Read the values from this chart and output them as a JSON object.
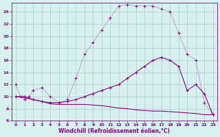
{
  "xlabel": "Windchill (Refroidissement éolien,°C)",
  "bg_color": "#d8f0ee",
  "grid_color": "#a8cece",
  "line_color": "#880088",
  "xlim": [
    -0.5,
    23.5
  ],
  "ylim": [
    6,
    25.5
  ],
  "xticks": [
    0,
    1,
    2,
    3,
    4,
    5,
    6,
    7,
    8,
    9,
    10,
    11,
    12,
    13,
    14,
    15,
    16,
    17,
    18,
    19,
    20,
    21,
    22,
    23
  ],
  "yticks": [
    6,
    8,
    10,
    12,
    14,
    16,
    18,
    20,
    22,
    24
  ],
  "curve1_x": [
    0,
    0.5,
    1,
    1.5,
    2,
    3,
    4,
    5,
    6,
    7,
    8,
    9,
    10,
    11,
    12,
    13,
    14,
    15,
    16,
    17,
    18,
    19,
    20,
    21,
    22,
    23
  ],
  "curve1_y": [
    12,
    10,
    9.5,
    10,
    11,
    11.5,
    10,
    9,
    9.5,
    13,
    17,
    19,
    21,
    23,
    25,
    25.2,
    25,
    25,
    25,
    24.5,
    24,
    20.5,
    17,
    16,
    9,
    7
  ],
  "curve2_x": [
    0,
    1,
    2,
    3,
    4,
    5,
    6,
    7,
    8,
    9,
    10,
    11,
    12,
    13,
    14,
    15,
    16,
    17,
    18,
    19,
    20,
    21,
    22,
    23
  ],
  "curve2_y": [
    10,
    10,
    9.5,
    9.2,
    9,
    9,
    9.2,
    9.5,
    10,
    10.5,
    11,
    11.5,
    12,
    13,
    14,
    15,
    16,
    16.5,
    16,
    15,
    11,
    12,
    10.5,
    7
  ],
  "curve3_x": [
    0,
    1,
    2,
    3,
    4,
    5,
    6,
    7,
    8,
    9,
    10,
    11,
    12,
    13,
    14,
    15,
    16,
    17,
    18,
    19,
    20,
    21,
    22,
    23
  ],
  "curve3_y": [
    10,
    9.8,
    9.5,
    9.2,
    8.8,
    8.7,
    8.7,
    8.7,
    8.7,
    8.6,
    8.5,
    8.3,
    8.1,
    8.0,
    7.8,
    7.7,
    7.6,
    7.6,
    7.5,
    7.4,
    7.3,
    7.2,
    7.0,
    7.0
  ]
}
